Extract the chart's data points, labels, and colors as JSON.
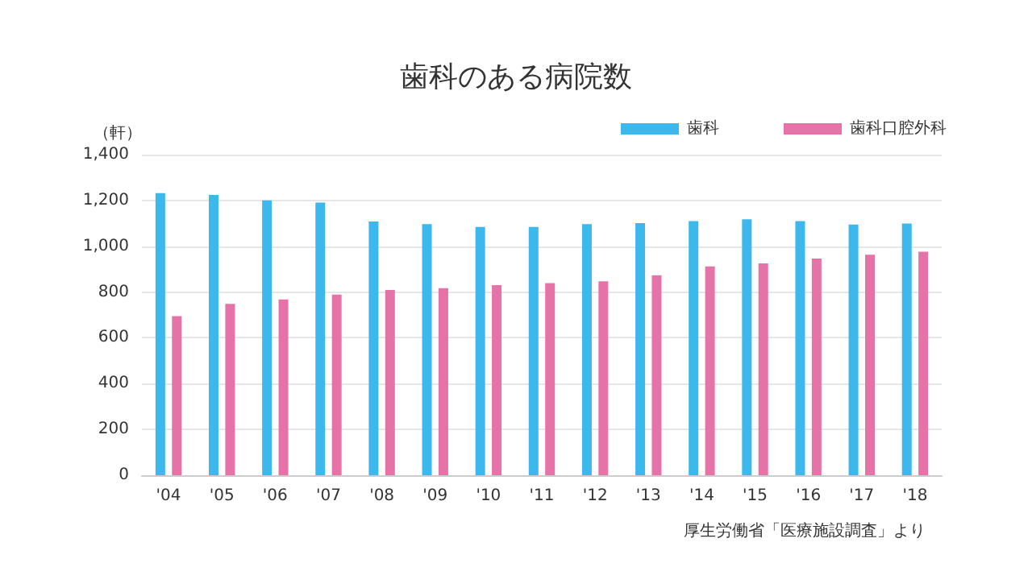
{
  "chart_data": {
    "type": "bar",
    "title": "歯科のある病院数",
    "ylabel": "（軒）",
    "categories": [
      "'04",
      "'05",
      "'06",
      "'07",
      "'08",
      "'09",
      "'10",
      "'11",
      "'12",
      "'13",
      "'14",
      "'15",
      "'16",
      "'17",
      "'18"
    ],
    "series": [
      {
        "name": "歯科",
        "color": "#3cb8ec",
        "values": [
          1232,
          1224,
          1200,
          1191,
          1108,
          1097,
          1084,
          1084,
          1097,
          1101,
          1110,
          1118,
          1110,
          1095,
          1099
        ]
      },
      {
        "name": "歯科口腔外科",
        "color": "#e673a8",
        "values": [
          695,
          748,
          768,
          789,
          809,
          817,
          830,
          839,
          847,
          873,
          912,
          925,
          946,
          963,
          976
        ]
      }
    ],
    "ylim": [
      0,
      1400
    ],
    "yticks": [
      0,
      200,
      400,
      600,
      800,
      {
        "value": 1000,
        "label": "1,000"
      },
      {
        "value": 1200,
        "label": "1,200"
      },
      {
        "value": 1400,
        "label": "1,400"
      }
    ],
    "grid": "y",
    "legend": "top right",
    "annotations": [
      "厚生労働省「医療施設調査」より"
    ]
  }
}
